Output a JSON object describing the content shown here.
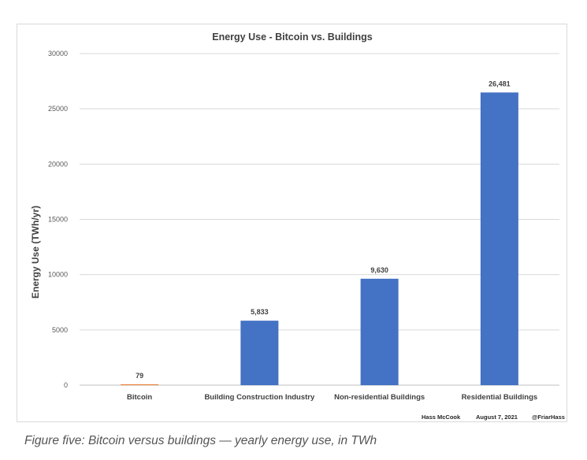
{
  "chart_data": {
    "type": "bar",
    "title": "Energy Use - Bitcoin vs. Buildings",
    "xlabel": "",
    "ylabel": "Energy Use (TWh/yr)",
    "ylim": [
      0,
      30000
    ],
    "yticks": [
      "0",
      "5000",
      "10000",
      "15000",
      "20000",
      "25000",
      "30000"
    ],
    "categories": [
      "Bitcoin",
      "Building Construction Industry",
      "Non-residential Buildings",
      "Residential Buildings"
    ],
    "values": [
      79,
      5833,
      9630,
      26481
    ],
    "data_labels": [
      "79",
      "5,833",
      "9,630",
      "26,481"
    ],
    "bar_colors": [
      "#ed7d31",
      "#4472c4",
      "#4472c4",
      "#4472c4"
    ],
    "grid": true,
    "legend": "none"
  },
  "credits": {
    "author": "Hass McCook",
    "date": "August 7, 2021",
    "handle": "@FriarHass"
  },
  "caption": "Figure five: Bitcoin versus buildings — yearly energy use, in TWh",
  "colors": {
    "bar_primary": "#4472c4",
    "bar_bitcoin": "#ed7d31",
    "gridline": "#d9d9d9",
    "text": "#404040"
  }
}
